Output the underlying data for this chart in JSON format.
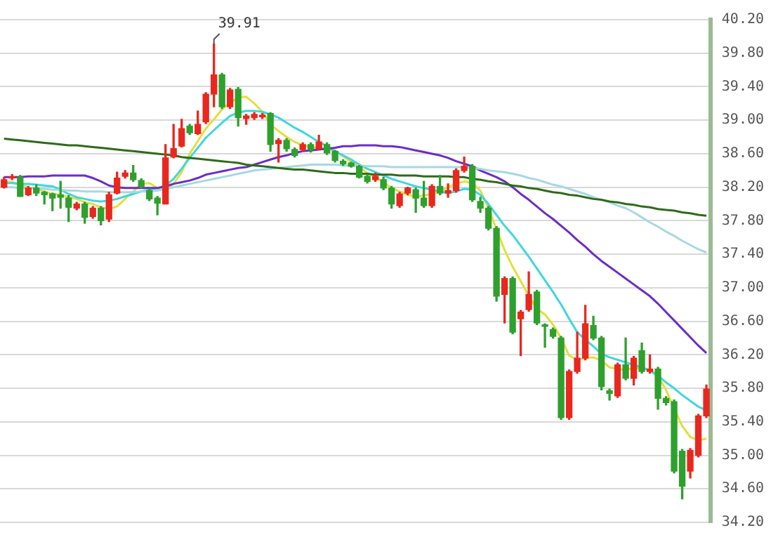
{
  "chart_data": {
    "type": "candlestick",
    "categories": [
      null,
      null,
      null,
      null,
      null,
      null,
      null,
      null,
      null,
      null,
      null,
      null,
      null,
      null,
      null,
      null,
      null,
      null,
      null,
      null,
      null,
      null,
      null,
      null,
      null,
      null,
      null,
      null,
      null,
      null,
      null,
      null,
      null,
      null,
      null,
      null,
      null,
      null,
      null,
      null,
      null,
      null,
      null,
      null,
      null,
      null,
      null,
      null,
      null,
      null,
      null,
      null,
      null,
      null,
      null,
      null,
      null,
      null,
      null,
      null,
      null,
      null,
      null,
      null,
      null,
      null,
      null,
      null,
      null,
      null,
      null,
      null,
      null,
      null,
      null,
      null,
      null,
      null,
      null,
      null,
      null,
      null,
      null,
      null,
      null,
      null,
      null,
      null
    ],
    "ohlc": [
      [
        38.2,
        38.32,
        38.19,
        38.29
      ],
      [
        38.31,
        38.35,
        38.29,
        38.31
      ],
      [
        38.32,
        38.34,
        38.09,
        38.09
      ],
      [
        38.11,
        38.21,
        38.1,
        38.19
      ],
      [
        38.19,
        38.23,
        38.1,
        38.13
      ],
      [
        38.14,
        38.15,
        38.0,
        38.11
      ],
      [
        38.12,
        38.13,
        37.92,
        38.07
      ],
      [
        38.11,
        38.27,
        37.95,
        38.08
      ],
      [
        38.07,
        38.1,
        37.79,
        37.96
      ],
      [
        37.95,
        38.02,
        37.93,
        38.0
      ],
      [
        38.0,
        38.02,
        37.77,
        37.84
      ],
      [
        37.85,
        37.97,
        37.83,
        37.95
      ],
      [
        37.95,
        37.97,
        37.75,
        37.8
      ],
      [
        37.82,
        38.14,
        37.79,
        38.11
      ],
      [
        38.13,
        38.38,
        38.12,
        38.31
      ],
      [
        38.33,
        38.4,
        38.31,
        38.37
      ],
      [
        38.37,
        38.46,
        38.27,
        38.29
      ],
      [
        38.28,
        38.3,
        38.19,
        38.21
      ],
      [
        38.16,
        38.18,
        38.04,
        38.06
      ],
      [
        38.07,
        38.09,
        37.87,
        38.01
      ],
      [
        38.0,
        38.71,
        38.0,
        38.55
      ],
      [
        38.56,
        38.95,
        38.55,
        38.66
      ],
      [
        38.69,
        39.01,
        38.68,
        38.9
      ],
      [
        38.93,
        38.95,
        38.83,
        38.85
      ],
      [
        38.84,
        39.11,
        38.83,
        38.95
      ],
      [
        38.98,
        39.33,
        38.96,
        39.31
      ],
      [
        39.31,
        39.91,
        39.16,
        39.54
      ],
      [
        39.54,
        39.56,
        39.14,
        39.16
      ],
      [
        39.16,
        39.38,
        39.14,
        39.36
      ],
      [
        39.37,
        39.39,
        38.93,
        39.03
      ],
      [
        39.02,
        39.07,
        38.95,
        39.05
      ],
      [
        39.03,
        39.09,
        39.01,
        39.07
      ],
      [
        39.04,
        39.08,
        39.02,
        39.06
      ],
      [
        39.08,
        39.09,
        38.63,
        38.71
      ],
      [
        38.72,
        38.78,
        38.5,
        38.76
      ],
      [
        38.76,
        38.78,
        38.63,
        38.66
      ],
      [
        38.65,
        38.67,
        38.56,
        38.58
      ],
      [
        38.65,
        38.73,
        38.63,
        38.71
      ],
      [
        38.71,
        38.73,
        38.62,
        38.65
      ],
      [
        38.66,
        38.82,
        38.65,
        38.74
      ],
      [
        38.71,
        38.73,
        38.59,
        38.61
      ],
      [
        38.63,
        38.64,
        38.5,
        38.52
      ],
      [
        38.51,
        38.53,
        38.46,
        38.48
      ],
      [
        38.49,
        38.5,
        38.44,
        38.45
      ],
      [
        38.45,
        38.46,
        38.31,
        38.32
      ],
      [
        38.33,
        38.35,
        38.25,
        38.27
      ],
      [
        38.29,
        38.37,
        38.27,
        38.33
      ],
      [
        38.29,
        38.32,
        38.17,
        38.19
      ],
      [
        38.19,
        38.21,
        37.95,
        38.0
      ],
      [
        37.98,
        38.14,
        37.96,
        38.12
      ],
      [
        38.13,
        38.2,
        38.11,
        38.19
      ],
      [
        38.17,
        38.19,
        37.9,
        38.07
      ],
      [
        38.07,
        38.27,
        37.96,
        37.98
      ],
      [
        37.98,
        38.23,
        37.96,
        38.21
      ],
      [
        38.21,
        38.34,
        38.11,
        38.13
      ],
      [
        38.13,
        38.24,
        38.08,
        38.16
      ],
      [
        38.16,
        38.42,
        38.14,
        38.4
      ],
      [
        38.4,
        38.56,
        38.38,
        38.45
      ],
      [
        38.45,
        38.47,
        38.03,
        38.05
      ],
      [
        38.03,
        38.08,
        37.9,
        37.95
      ],
      [
        37.95,
        37.97,
        37.69,
        37.71
      ],
      [
        37.71,
        37.73,
        36.84,
        36.9
      ],
      [
        36.92,
        37.13,
        36.58,
        37.11
      ],
      [
        37.11,
        37.13,
        36.45,
        36.47
      ],
      [
        36.63,
        36.73,
        36.19,
        36.71
      ],
      [
        36.74,
        37.19,
        36.72,
        36.92
      ],
      [
        36.95,
        36.97,
        36.56,
        36.58
      ],
      [
        36.55,
        36.57,
        36.29,
        36.54
      ],
      [
        36.5,
        36.52,
        36.4,
        36.42
      ],
      [
        36.4,
        36.42,
        35.43,
        35.45
      ],
      [
        35.45,
        36.02,
        35.43,
        36.0
      ],
      [
        36.0,
        36.47,
        35.98,
        36.16
      ],
      [
        36.16,
        36.79,
        36.14,
        36.57
      ],
      [
        36.55,
        36.66,
        36.38,
        36.4
      ],
      [
        36.4,
        36.42,
        35.78,
        35.82
      ],
      [
        35.77,
        35.79,
        35.66,
        35.74
      ],
      [
        35.71,
        36.1,
        35.69,
        36.08
      ],
      [
        36.08,
        36.4,
        35.9,
        35.92
      ],
      [
        35.92,
        36.18,
        35.84,
        36.16
      ],
      [
        36.25,
        36.34,
        35.98,
        36.0
      ],
      [
        36.0,
        36.2,
        35.98,
        36.03
      ],
      [
        36.03,
        36.05,
        35.55,
        35.68
      ],
      [
        35.68,
        35.7,
        35.6,
        35.63
      ],
      [
        35.64,
        35.66,
        34.79,
        34.81
      ],
      [
        35.05,
        35.07,
        34.48,
        34.63
      ],
      [
        34.81,
        35.08,
        34.73,
        35.06
      ],
      [
        35.0,
        35.49,
        34.98,
        35.47
      ],
      [
        35.47,
        35.84,
        35.45,
        35.79
      ]
    ],
    "series": [
      {
        "type": "line",
        "color": "#2e6b1a",
        "values": [
          38.78,
          38.77,
          38.76,
          38.75,
          38.74,
          38.73,
          38.72,
          38.71,
          38.7,
          38.7,
          38.69,
          38.68,
          38.67,
          38.66,
          38.65,
          38.64,
          38.63,
          38.62,
          38.61,
          38.6,
          38.59,
          38.58,
          38.56,
          38.55,
          38.54,
          38.53,
          38.52,
          38.51,
          38.5,
          38.49,
          38.47,
          38.46,
          38.45,
          38.44,
          38.43,
          38.42,
          38.41,
          38.41,
          38.4,
          38.39,
          38.38,
          38.37,
          38.37,
          38.36,
          38.36,
          38.36,
          38.35,
          38.35,
          38.35,
          38.34,
          38.34,
          38.34,
          38.33,
          38.33,
          38.33,
          38.33,
          38.32,
          38.32,
          38.3,
          38.29,
          38.27,
          38.26,
          38.24,
          38.22,
          38.21,
          38.19,
          38.18,
          38.16,
          38.14,
          38.13,
          38.11,
          38.1,
          38.08,
          38.06,
          38.05,
          38.03,
          38.02,
          38.0,
          37.99,
          37.97,
          37.96,
          37.94,
          37.93,
          37.92,
          37.9,
          37.89,
          37.87,
          37.86
        ]
      },
      {
        "type": "line",
        "color": "#a6d9e2",
        "values": [
          38.2,
          38.2,
          38.19,
          38.19,
          38.18,
          38.18,
          38.17,
          38.17,
          38.16,
          38.16,
          38.15,
          38.15,
          38.15,
          38.14,
          38.14,
          38.14,
          38.14,
          38.15,
          38.15,
          38.16,
          38.18,
          38.2,
          38.22,
          38.24,
          38.26,
          38.28,
          38.3,
          38.32,
          38.34,
          38.36,
          38.38,
          38.4,
          38.41,
          38.42,
          38.43,
          38.44,
          38.45,
          38.46,
          38.47,
          38.47,
          38.47,
          38.47,
          38.46,
          38.46,
          38.46,
          38.45,
          38.45,
          38.45,
          38.44,
          38.44,
          38.44,
          38.44,
          38.44,
          38.44,
          38.44,
          38.44,
          38.44,
          38.44,
          38.43,
          38.42,
          38.4,
          38.39,
          38.38,
          38.36,
          38.34,
          38.31,
          38.29,
          38.26,
          38.23,
          38.21,
          38.18,
          38.15,
          38.12,
          38.08,
          38.05,
          38.02,
          37.98,
          37.95,
          37.9,
          37.84,
          37.78,
          37.73,
          37.67,
          37.62,
          37.56,
          37.51,
          37.46,
          37.42
        ]
      },
      {
        "type": "line",
        "color": "#6a2dc8",
        "values": [
          38.32,
          38.32,
          38.32,
          38.33,
          38.33,
          38.33,
          38.34,
          38.34,
          38.34,
          38.34,
          38.34,
          38.31,
          38.27,
          38.22,
          38.2,
          38.19,
          38.19,
          38.19,
          38.19,
          38.19,
          38.21,
          38.24,
          38.26,
          38.28,
          38.31,
          38.35,
          38.37,
          38.39,
          38.41,
          38.43,
          38.44,
          38.47,
          38.5,
          38.53,
          38.56,
          38.58,
          38.61,
          38.63,
          38.64,
          38.65,
          38.66,
          38.67,
          38.69,
          38.69,
          38.7,
          38.7,
          38.7,
          38.69,
          38.69,
          38.68,
          38.66,
          38.64,
          38.62,
          38.6,
          38.58,
          38.55,
          38.51,
          38.48,
          38.45,
          38.4,
          38.36,
          38.32,
          38.27,
          38.2,
          38.12,
          38.05,
          37.97,
          37.89,
          37.82,
          37.74,
          37.66,
          37.57,
          37.49,
          37.4,
          37.32,
          37.25,
          37.18,
          37.11,
          37.04,
          36.97,
          36.9,
          36.81,
          36.71,
          36.61,
          36.51,
          36.41,
          36.31,
          36.22
        ]
      },
      {
        "type": "line",
        "color": "#3fd6e0",
        "values": [
          38.25,
          38.25,
          38.24,
          38.24,
          38.23,
          38.22,
          38.21,
          38.17,
          38.12,
          38.08,
          38.06,
          38.04,
          38.03,
          38.04,
          38.06,
          38.09,
          38.12,
          38.15,
          38.17,
          38.19,
          38.22,
          38.3,
          38.42,
          38.55,
          38.67,
          38.79,
          38.88,
          38.97,
          39.05,
          39.09,
          39.11,
          39.11,
          39.1,
          39.07,
          39.03,
          38.97,
          38.91,
          38.86,
          38.8,
          38.74,
          38.69,
          38.63,
          38.58,
          38.53,
          38.47,
          38.42,
          38.38,
          38.34,
          38.3,
          38.27,
          38.24,
          38.21,
          38.19,
          38.17,
          38.15,
          38.13,
          38.15,
          38.18,
          38.17,
          38.11,
          38.0,
          37.87,
          37.74,
          37.63,
          37.5,
          37.37,
          37.23,
          37.09,
          36.95,
          36.8,
          36.63,
          36.47,
          36.38,
          36.3,
          36.21,
          36.17,
          36.14,
          36.11,
          36.08,
          36.05,
          36.01,
          35.95,
          35.87,
          35.8,
          35.72,
          35.65,
          35.58,
          35.54
        ]
      },
      {
        "type": "line",
        "color": "#e3df3a",
        "values": [
          38.26,
          38.26,
          38.23,
          38.2,
          38.18,
          38.15,
          38.12,
          38.11,
          38.08,
          38.06,
          38.02,
          38.0,
          37.96,
          37.94,
          37.97,
          38.06,
          38.15,
          38.24,
          38.25,
          38.19,
          38.16,
          38.24,
          38.38,
          38.6,
          38.75,
          38.9,
          39.01,
          39.13,
          39.21,
          39.27,
          39.28,
          39.2,
          39.1,
          38.95,
          38.87,
          38.8,
          38.74,
          38.7,
          38.68,
          38.67,
          38.66,
          38.63,
          38.57,
          38.5,
          38.44,
          38.37,
          38.32,
          38.26,
          38.19,
          38.15,
          38.11,
          38.09,
          38.1,
          38.12,
          38.15,
          38.2,
          38.24,
          38.27,
          38.25,
          38.16,
          37.95,
          37.7,
          37.45,
          37.25,
          37.08,
          36.9,
          36.75,
          36.68,
          36.56,
          36.4,
          36.19,
          36.14,
          36.16,
          36.17,
          36.13,
          36.05,
          36.03,
          36.02,
          36.04,
          36.04,
          36.02,
          35.95,
          35.78,
          null,
          35.35,
          35.22,
          35.18,
          35.2
        ]
      }
    ],
    "ylim": [
      34.2,
      40.2
    ],
    "yticks": [
      {
        "value": 34.2,
        "label": "34.20"
      },
      {
        "value": 34.6,
        "label": "34.60"
      },
      {
        "value": 35.0,
        "label": "35.00"
      },
      {
        "value": 35.4,
        "label": "35.40"
      },
      {
        "value": 35.8,
        "label": "35.80"
      },
      {
        "value": 36.2,
        "label": "36.20"
      },
      {
        "value": 36.6,
        "label": "36.60"
      },
      {
        "value": 37.0,
        "label": "37.00"
      },
      {
        "value": 37.4,
        "label": "37.40"
      },
      {
        "value": 37.8,
        "label": "37.80"
      },
      {
        "value": 38.2,
        "label": "38.20"
      },
      {
        "value": 38.6,
        "label": "38.60"
      },
      {
        "value": 39.0,
        "label": "39.00"
      },
      {
        "value": 39.4,
        "label": "39.40"
      },
      {
        "value": 39.8,
        "label": "39.80"
      },
      {
        "value": 40.2,
        "label": "40.20"
      }
    ],
    "annotations": [
      "39.91"
    ],
    "grid": "y",
    "tick_labels": "y",
    "legend": false
  }
}
